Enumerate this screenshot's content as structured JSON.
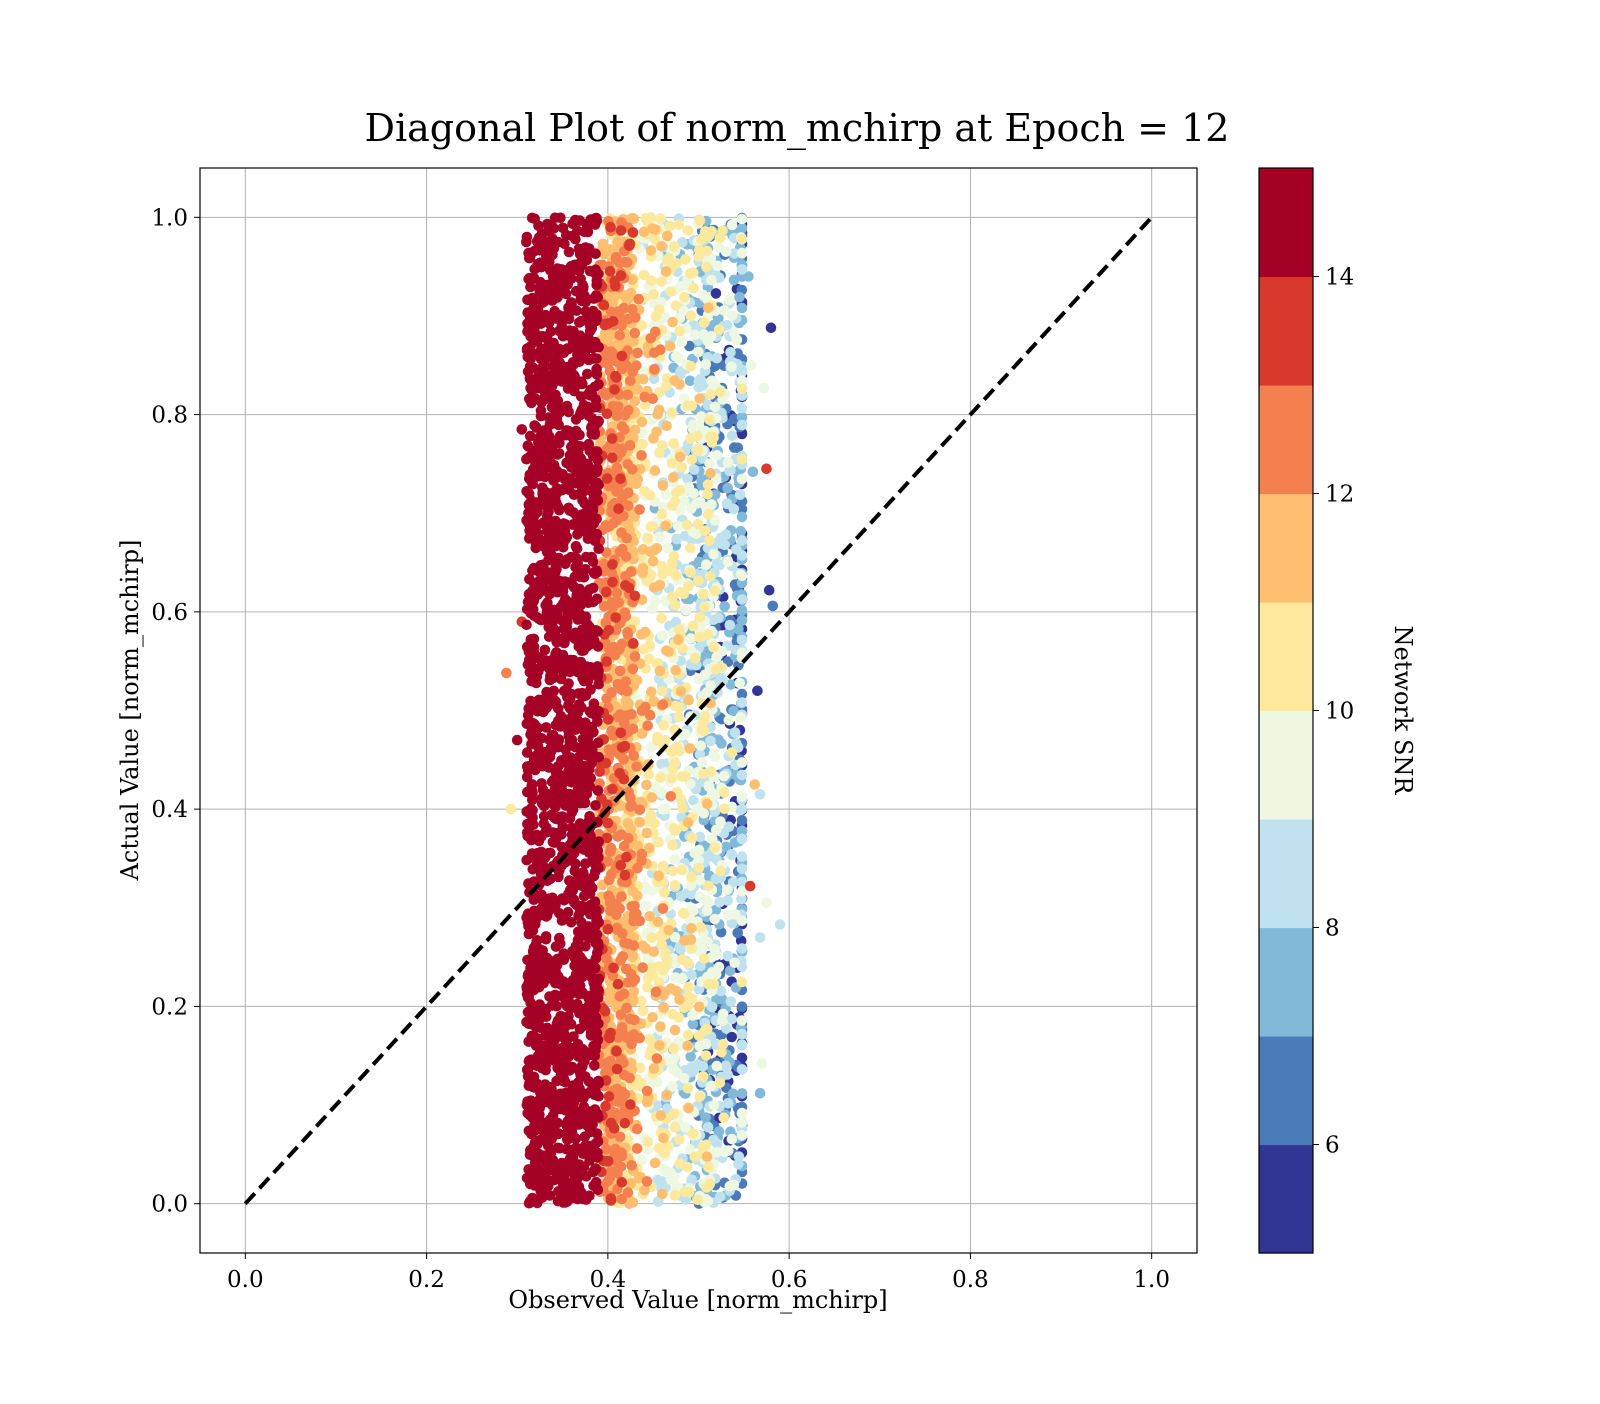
{
  "chart_data": {
    "type": "scatter",
    "title": "Diagonal Plot of norm_mchirp at Epoch = 12",
    "xlabel": "Observed Value [norm_mchirp]",
    "ylabel": "Actual Value [norm_mchirp]",
    "xlim": [
      -0.05,
      1.05
    ],
    "ylim": [
      -0.05,
      1.05
    ],
    "x_ticks": [
      "0.0",
      "0.2",
      "0.4",
      "0.6",
      "0.8",
      "1.0"
    ],
    "y_ticks": [
      "0.0",
      "0.2",
      "0.4",
      "0.6",
      "0.8",
      "1.0"
    ],
    "grid": true,
    "reference_line": {
      "style": "dashed",
      "color": "#000000",
      "from": [
        0,
        0
      ],
      "to": [
        1,
        1
      ]
    },
    "colorbar": {
      "label": "Network SNR",
      "range": [
        5,
        15
      ],
      "ticks": [
        "6",
        "8",
        "10",
        "12",
        "14"
      ],
      "colors": [
        "#313695",
        "#4a7ab7",
        "#82b9d9",
        "#c0e2ee",
        "#eef7e1",
        "#fde99d",
        "#fdbf6f",
        "#f4804f",
        "#d8392c",
        "#a50026"
      ]
    },
    "point_distribution": {
      "x_min": 0.29,
      "x_max": 0.59,
      "y_min": 0.0,
      "y_max": 1.0,
      "core_x_range": [
        0.31,
        0.43
      ],
      "edge_x_range": [
        0.5,
        0.56
      ],
      "note": "SNR decreases as observed value increases across the band"
    },
    "outliers": [
      {
        "x": 0.58,
        "y": 0.888,
        "snr": 5.5
      },
      {
        "x": 0.575,
        "y": 0.745,
        "snr": 13.5
      },
      {
        "x": 0.578,
        "y": 0.622,
        "snr": 5.5
      },
      {
        "x": 0.582,
        "y": 0.606,
        "snr": 6.5
      },
      {
        "x": 0.288,
        "y": 0.538,
        "snr": 12.5
      },
      {
        "x": 0.3,
        "y": 0.47,
        "snr": 14.8
      },
      {
        "x": 0.293,
        "y": 0.4,
        "snr": 10.5
      },
      {
        "x": 0.565,
        "y": 0.52,
        "snr": 5.5
      },
      {
        "x": 0.59,
        "y": 0.283,
        "snr": 8.5
      },
      {
        "x": 0.575,
        "y": 0.305,
        "snr": 9.5
      },
      {
        "x": 0.568,
        "y": 0.27,
        "snr": 8.5
      },
      {
        "x": 0.57,
        "y": 0.142,
        "snr": 9.5
      },
      {
        "x": 0.568,
        "y": 0.112,
        "snr": 7.5
      },
      {
        "x": 0.572,
        "y": 0.827,
        "snr": 9.5
      },
      {
        "x": 0.568,
        "y": 0.415,
        "snr": 8.5
      },
      {
        "x": 0.562,
        "y": 0.425,
        "snr": 11.5
      },
      {
        "x": 0.558,
        "y": 0.85,
        "snr": 9.5
      },
      {
        "x": 0.555,
        "y": 0.94,
        "snr": 7.0
      },
      {
        "x": 0.56,
        "y": 0.742,
        "snr": 7.5
      },
      {
        "x": 0.557,
        "y": 0.322,
        "snr": 13.0
      },
      {
        "x": 0.31,
        "y": 0.975,
        "snr": 14.2
      },
      {
        "x": 0.305,
        "y": 0.785,
        "snr": 14.8
      },
      {
        "x": 0.305,
        "y": 0.59,
        "snr": 13.5
      }
    ]
  }
}
